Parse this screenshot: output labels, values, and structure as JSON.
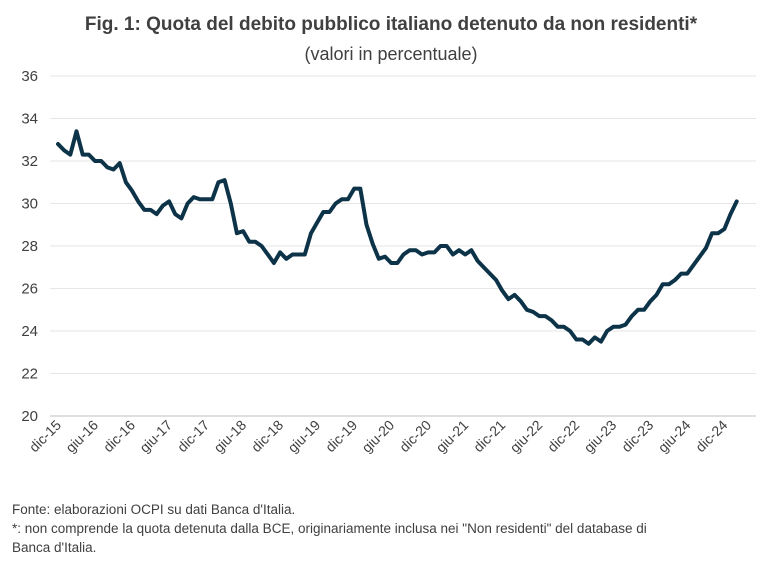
{
  "chart_data": {
    "type": "line",
    "title": "Fig. 1: Quota del debito pubblico italiano detenuto da non residenti*",
    "subtitle": "(valori in percentuale)",
    "xlabel": "",
    "ylabel": "",
    "ylim": [
      20,
      36
    ],
    "yticks": [
      20,
      22,
      24,
      26,
      28,
      30,
      32,
      34,
      36
    ],
    "xtick_labels": [
      "dic-15",
      "giu-16",
      "dic-16",
      "giu-17",
      "dic-17",
      "giu-18",
      "dic-18",
      "giu-19",
      "dic-19",
      "giu-20",
      "dic-20",
      "giu-21",
      "dic-21",
      "giu-22",
      "dic-22",
      "giu-23",
      "dic-23",
      "giu-24",
      "dic-24"
    ],
    "grid": "horizontal",
    "legend": "none",
    "line_color": "#0d3349",
    "series": [
      {
        "values": [
          32.8,
          32.5,
          32.3,
          33.4,
          32.3,
          32.3,
          32.0,
          32.0,
          31.7,
          31.6,
          31.9,
          31.0,
          30.6,
          30.1,
          29.7,
          29.7,
          29.5,
          29.9,
          30.1,
          29.5,
          29.3,
          30.0,
          30.3,
          30.2,
          30.2,
          30.2,
          31.0,
          31.1,
          30.0,
          28.6,
          28.7,
          28.2,
          28.2,
          28.0,
          27.6,
          27.2,
          27.7,
          27.4,
          27.6,
          27.6,
          27.6,
          28.6,
          29.1,
          29.6,
          29.6,
          30.0,
          30.2,
          30.2,
          30.7,
          30.7,
          29.0,
          28.1,
          27.4,
          27.5,
          27.2,
          27.2,
          27.6,
          27.8,
          27.8,
          27.6,
          27.7,
          27.7,
          28.0,
          28.0,
          27.6,
          27.8,
          27.6,
          27.8,
          27.3,
          27.0,
          26.7,
          26.4,
          25.9,
          25.5,
          25.7,
          25.4,
          25.0,
          24.9,
          24.7,
          24.7,
          24.5,
          24.2,
          24.2,
          24.0,
          23.6,
          23.6,
          23.4,
          23.7,
          23.5,
          24.0,
          24.2,
          24.2,
          24.3,
          24.7,
          25.0,
          25.0,
          25.4,
          25.7,
          26.2,
          26.2,
          26.4,
          26.7,
          26.7,
          27.1,
          27.5,
          27.9,
          28.6,
          28.6,
          28.8,
          29.5,
          30.1
        ]
      }
    ]
  },
  "footnotes": [
    "Fonte: elaborazioni OCPI su dati Banca d'Italia.",
    "*: non comprende la quota detenuta dalla BCE, originariamente inclusa nei \"Non residenti\" del database di",
    "Banca d'Italia."
  ]
}
